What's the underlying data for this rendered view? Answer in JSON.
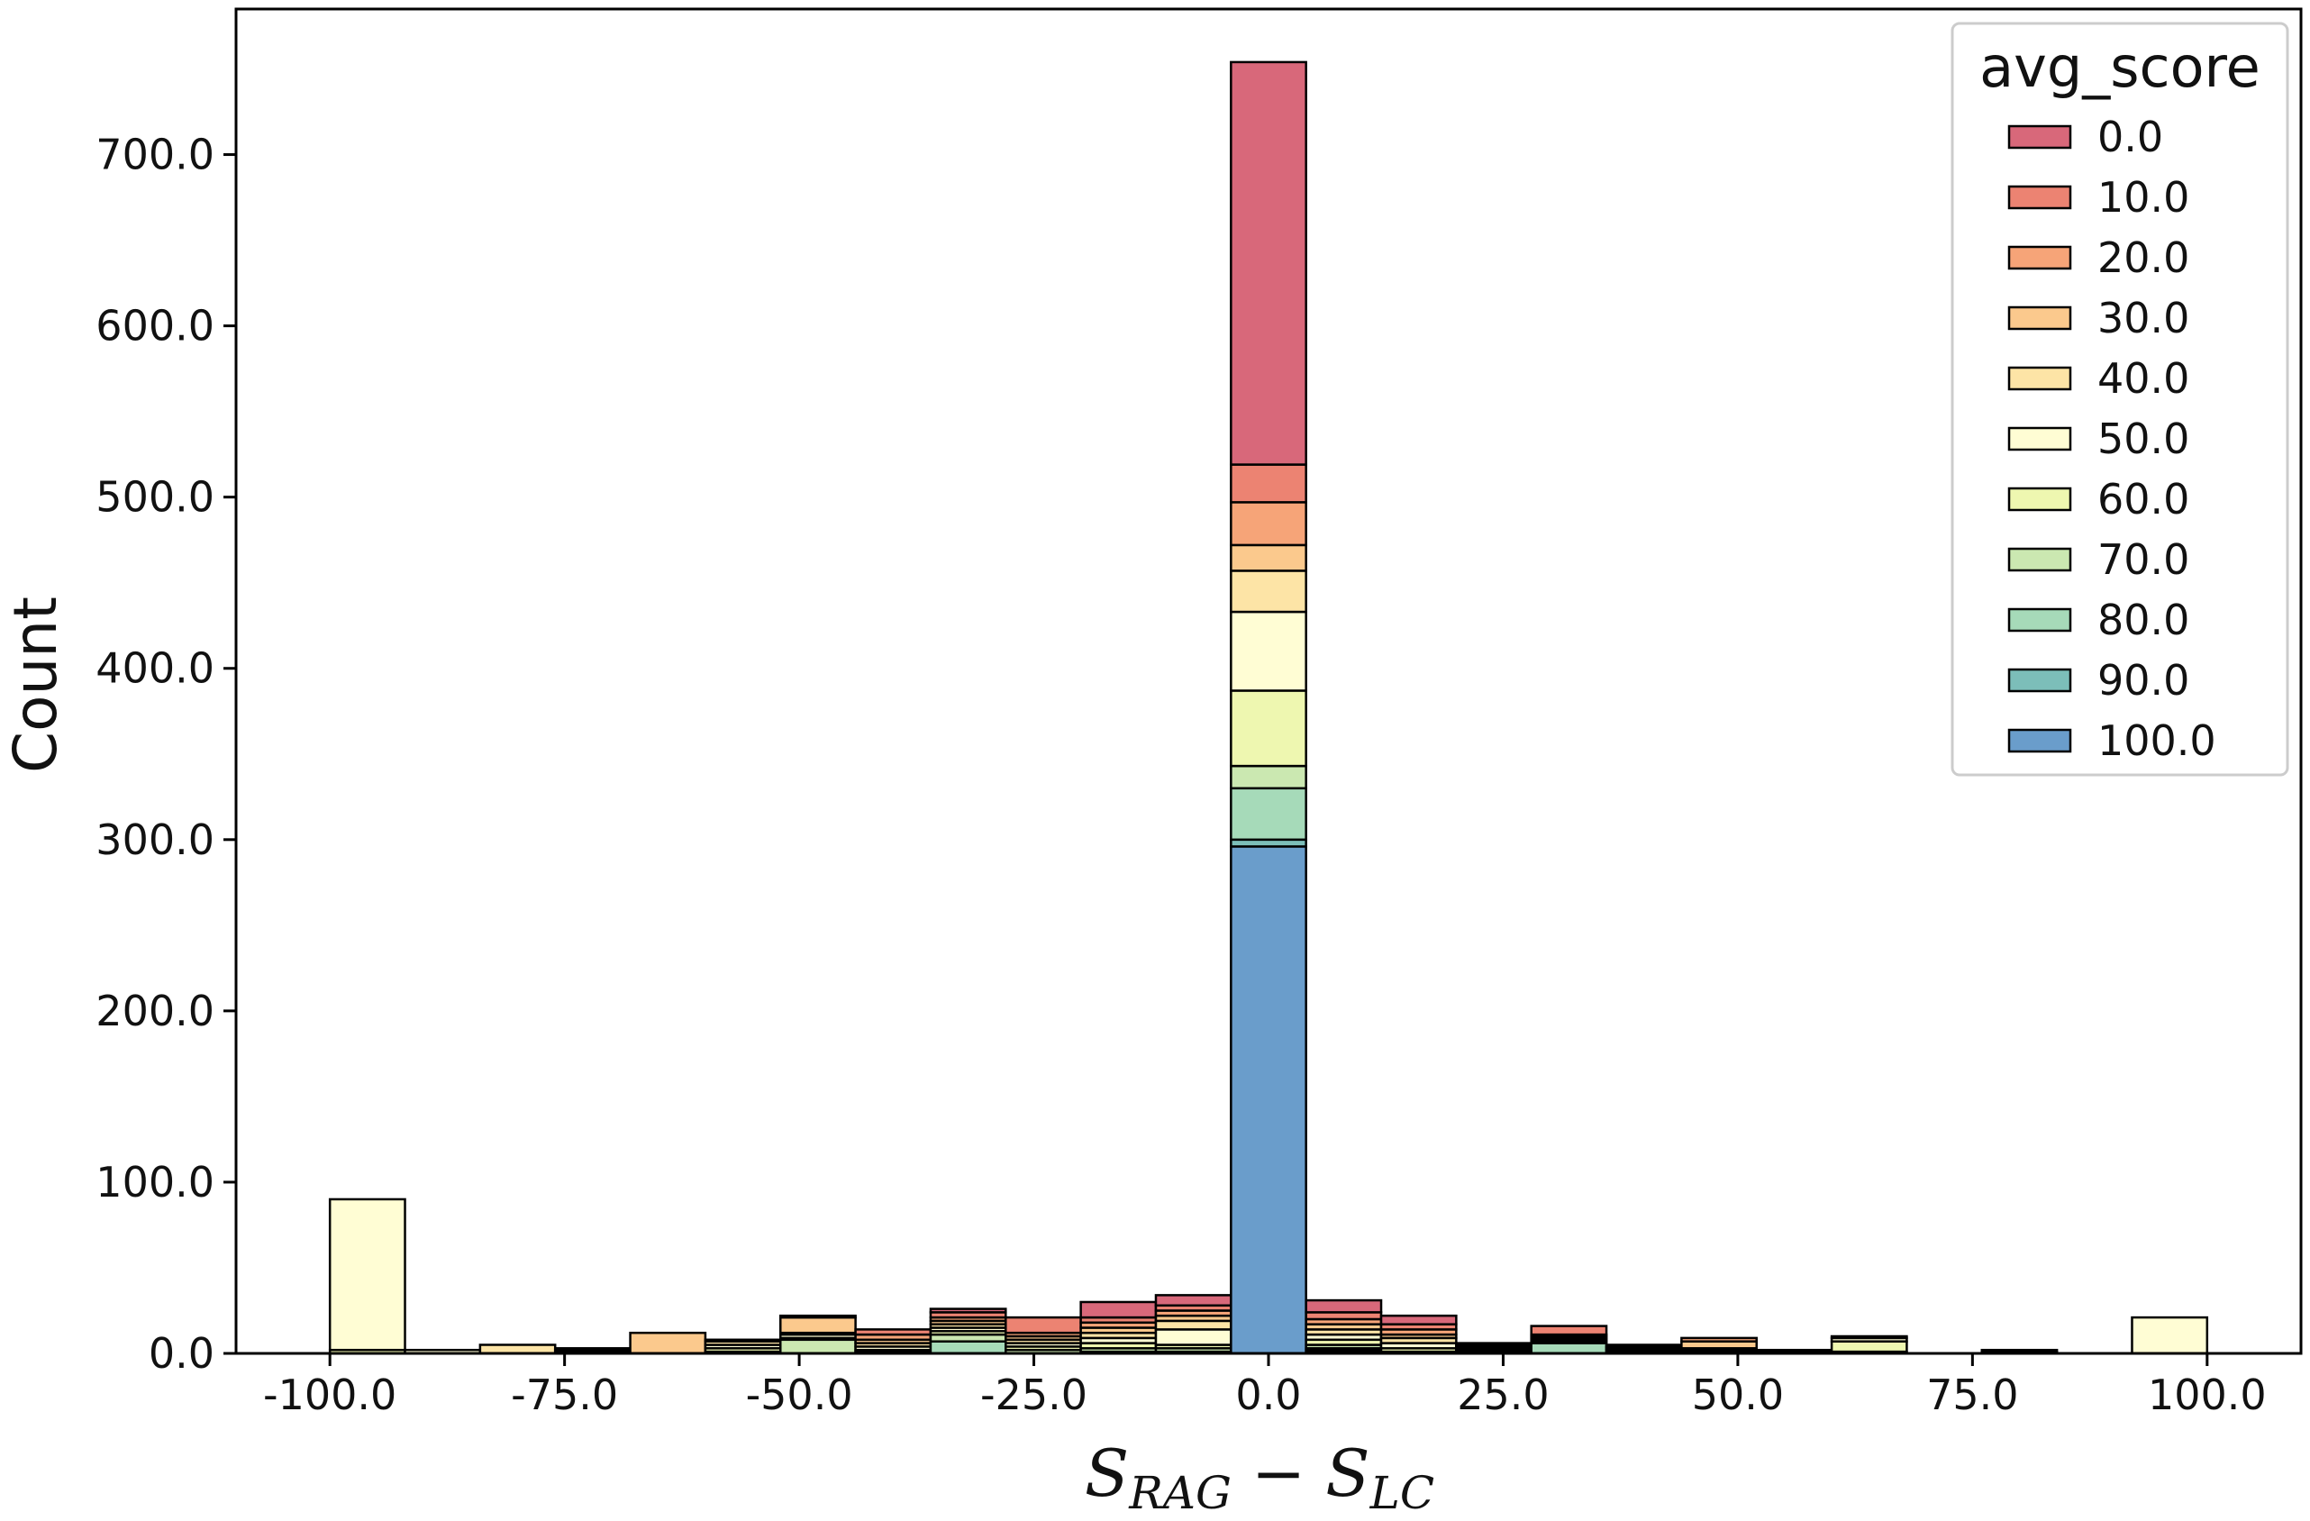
{
  "chart_data": {
    "type": "bar",
    "stacked": true,
    "xlabel": {
      "main1": "S",
      "sub1": "RAG",
      "op": "−",
      "main2": "S",
      "sub2": "LC"
    },
    "ylabel": "Count",
    "xlim": [
      -110,
      110
    ],
    "ylim": [
      0,
      785
    ],
    "bin_width": 8,
    "x_ticks": [
      {
        "value": -100,
        "label": "-100.0"
      },
      {
        "value": -75,
        "label": "-75.0"
      },
      {
        "value": -50,
        "label": "-50.0"
      },
      {
        "value": -25,
        "label": "-25.0"
      },
      {
        "value": 0,
        "label": "0.0"
      },
      {
        "value": 25,
        "label": "25.0"
      },
      {
        "value": 50,
        "label": "50.0"
      },
      {
        "value": 75,
        "label": "75.0"
      },
      {
        "value": 100,
        "label": "100.0"
      }
    ],
    "y_ticks": [
      {
        "value": 0,
        "label": "0.0"
      },
      {
        "value": 100,
        "label": "100.0"
      },
      {
        "value": 200,
        "label": "200.0"
      },
      {
        "value": 300,
        "label": "300.0"
      },
      {
        "value": 400,
        "label": "400.0"
      },
      {
        "value": 500,
        "label": "500.0"
      },
      {
        "value": 600,
        "label": "600.0"
      },
      {
        "value": 700,
        "label": "700.0"
      }
    ],
    "legend": {
      "title": "avg_score",
      "position": "top-right",
      "entries": [
        {
          "label": "0.0",
          "color": "#d8687a"
        },
        {
          "label": "10.0",
          "color": "#ec8372"
        },
        {
          "label": "20.0",
          "color": "#f6a478"
        },
        {
          "label": "30.0",
          "color": "#fbc98d"
        },
        {
          "label": "40.0",
          "color": "#fde4a6"
        },
        {
          "label": "50.0",
          "color": "#fffdd4"
        },
        {
          "label": "60.0",
          "color": "#eef7b0"
        },
        {
          "label": "70.0",
          "color": "#cbe8b1"
        },
        {
          "label": "80.0",
          "color": "#a6dab9"
        },
        {
          "label": "90.0",
          "color": "#7cbeb9"
        },
        {
          "label": "100.0",
          "color": "#6a9dcb"
        }
      ]
    },
    "bins": [
      {
        "x": -96,
        "counts": [
          0,
          0,
          0,
          0,
          0,
          88,
          2,
          0,
          0,
          0,
          0
        ]
      },
      {
        "x": -88,
        "counts": [
          0,
          0,
          0,
          0,
          0,
          2,
          0,
          0,
          0,
          0,
          0
        ]
      },
      {
        "x": -80,
        "counts": [
          0,
          0,
          0,
          0,
          5,
          0,
          0,
          0,
          0,
          0,
          0
        ]
      },
      {
        "x": -72,
        "counts": [
          0,
          0,
          0,
          1,
          1,
          1,
          0,
          0,
          0,
          0,
          0
        ]
      },
      {
        "x": -64,
        "counts": [
          0,
          0,
          0,
          12,
          0,
          0,
          0,
          0,
          0,
          0,
          0
        ]
      },
      {
        "x": -56,
        "counts": [
          0,
          0,
          0,
          1,
          2,
          2,
          2,
          1,
          0,
          0,
          0
        ]
      },
      {
        "x": -48,
        "counts": [
          0,
          0,
          1,
          9,
          1,
          2,
          1,
          8,
          0,
          0,
          0
        ]
      },
      {
        "x": -40,
        "counts": [
          0,
          3,
          3,
          2,
          2,
          2,
          1,
          1,
          0,
          0,
          0
        ]
      },
      {
        "x": -32,
        "counts": [
          2,
          3,
          2,
          2,
          2,
          2,
          2,
          4,
          7,
          0,
          0
        ]
      },
      {
        "x": -24,
        "counts": [
          0,
          9,
          2,
          2,
          2,
          2,
          2,
          2,
          0,
          0,
          0
        ]
      },
      {
        "x": -16,
        "counts": [
          9,
          3,
          3,
          3,
          3,
          3,
          3,
          2,
          1,
          0,
          0
        ]
      },
      {
        "x": -8,
        "counts": [
          6,
          3,
          3,
          3,
          5,
          9,
          2,
          2,
          1,
          0,
          0
        ]
      },
      {
        "x": 0,
        "counts": [
          235,
          22,
          25,
          15,
          24,
          46,
          44,
          13,
          30,
          4,
          296
        ]
      },
      {
        "x": 8,
        "counts": [
          7,
          4,
          3,
          3,
          3,
          3,
          3,
          2,
          1,
          1,
          1
        ]
      },
      {
        "x": 16,
        "counts": [
          5,
          3,
          3,
          2,
          3,
          3,
          2,
          1,
          0,
          0,
          0
        ]
      },
      {
        "x": 24,
        "counts": [
          1,
          1,
          1,
          1,
          1,
          1,
          0,
          0,
          0,
          0,
          0
        ]
      },
      {
        "x": 32,
        "counts": [
          0,
          5,
          1,
          1,
          1,
          1,
          0,
          1,
          6,
          0,
          0
        ]
      },
      {
        "x": 40,
        "counts": [
          0,
          1,
          1,
          1,
          1,
          1,
          0,
          0,
          0,
          0,
          0
        ]
      },
      {
        "x": 48,
        "counts": [
          0,
          0,
          2,
          4,
          1,
          1,
          1,
          0,
          0,
          0,
          0
        ]
      },
      {
        "x": 56,
        "counts": [
          0,
          0,
          0,
          0,
          1,
          1,
          0,
          0,
          0,
          0,
          0
        ]
      },
      {
        "x": 64,
        "counts": [
          0,
          0,
          0,
          0,
          1,
          2,
          6,
          1,
          0,
          0,
          0
        ]
      },
      {
        "x": 80,
        "counts": [
          0,
          0,
          0,
          0,
          0,
          1,
          1,
          0,
          0,
          0,
          0
        ]
      },
      {
        "x": 96,
        "counts": [
          0,
          0,
          0,
          0,
          0,
          21,
          0,
          0,
          0,
          0,
          0
        ]
      }
    ]
  }
}
